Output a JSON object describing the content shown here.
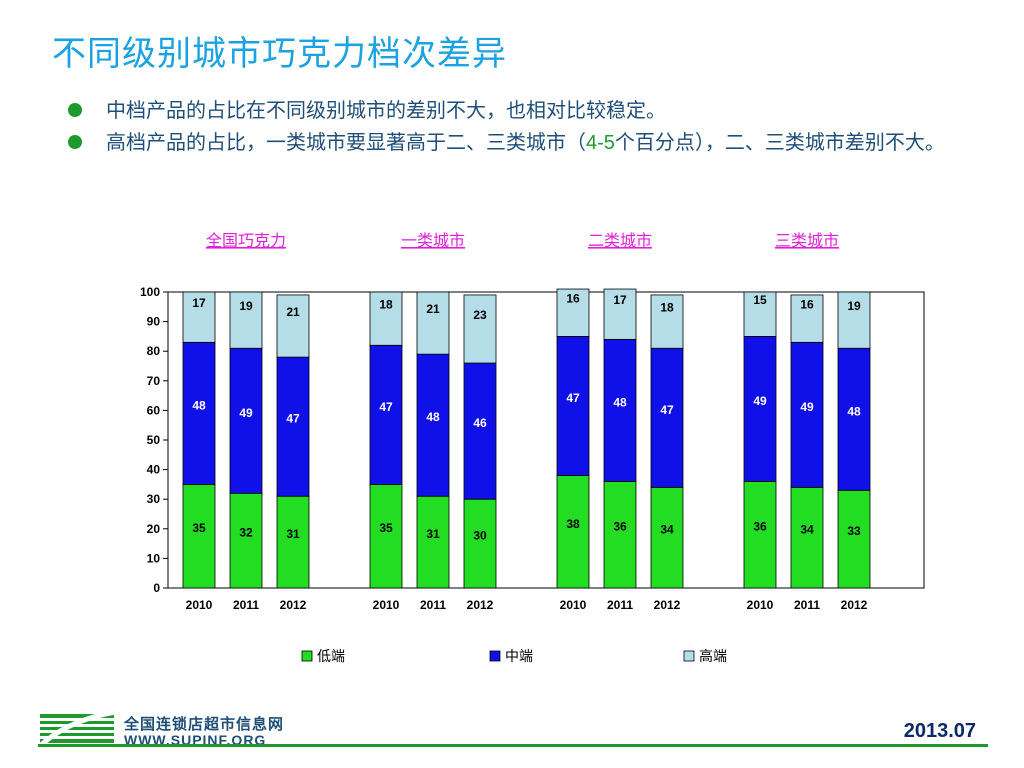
{
  "slide": {
    "title": "不同级别城市巧克力档次差异",
    "bullets": [
      {
        "text_before": "中档产品的占比在不同级别城市的差别不大，也相对比较稳定。",
        "accent": "",
        "text_after": ""
      },
      {
        "text_before": "高档产品的占比，一类城市要显著高于二、三类城市（",
        "accent": "4-5",
        "text_after": "个百分点），二、三类城市差别不大。"
      }
    ]
  },
  "footer": {
    "logo_cn": "全国连锁店超市信息网",
    "logo_en": "WWW.SUPINF.ORG",
    "date": "2013.07"
  },
  "chart_data": {
    "type": "bar",
    "stacked": true,
    "ylim": [
      0,
      100
    ],
    "yticks": [
      0,
      10,
      20,
      30,
      40,
      50,
      60,
      70,
      80,
      90,
      100
    ],
    "groups": [
      {
        "name": "全国巧克力",
        "years": [
          "2010",
          "2011",
          "2012"
        ],
        "低端": [
          35,
          32,
          31
        ],
        "中端": [
          48,
          49,
          47
        ],
        "高端": [
          17,
          19,
          21
        ]
      },
      {
        "name": "一类城市",
        "years": [
          "2010",
          "2011",
          "2012"
        ],
        "低端": [
          35,
          31,
          30
        ],
        "中端": [
          47,
          48,
          46
        ],
        "高端": [
          18,
          21,
          23
        ]
      },
      {
        "name": "二类城市",
        "years": [
          "2010",
          "2011",
          "2012"
        ],
        "低端": [
          38,
          36,
          34
        ],
        "中端": [
          47,
          48,
          47
        ],
        "高端": [
          16,
          17,
          18
        ]
      },
      {
        "name": "三类城市",
        "years": [
          "2010",
          "2011",
          "2012"
        ],
        "低端": [
          36,
          34,
          33
        ],
        "中端": [
          49,
          49,
          48
        ],
        "高端": [
          15,
          16,
          19
        ]
      }
    ],
    "series": [
      {
        "name": "低端",
        "color": "#22dd22"
      },
      {
        "name": "中端",
        "color": "#1010e8"
      },
      {
        "name": "高端",
        "color": "#b4dde8"
      }
    ],
    "legend_position": "bottom",
    "group_label_color": "#e020d8"
  }
}
